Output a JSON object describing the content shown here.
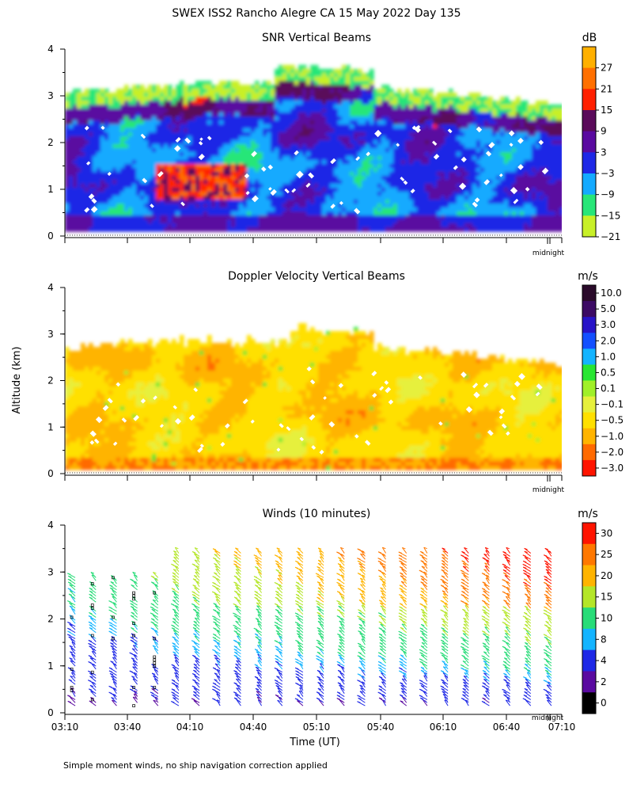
{
  "title": "SWEX ISS2 Rancho Alegre CA  15 May 2022 Day 135",
  "y_axis_label": "Altitude (km)",
  "x_axis_label": "Time (UT)",
  "footnote": "Simple moment winds, no ship navigation correction applied",
  "midnight_label": "midnight",
  "chart_data": [
    {
      "type": "heatmap",
      "title": "SNR Vertical Beams",
      "ylabel": "Altitude (km)",
      "ylim": [
        0,
        4
      ],
      "yticks": [
        "0",
        "1",
        "2",
        "3",
        "4"
      ],
      "colorbar": {
        "unit": "dB",
        "tick_labels": [
          "27",
          "21",
          "15",
          "9",
          "3",
          "−3",
          "−9",
          "−15",
          "−21"
        ],
        "colors": [
          "#ffb000",
          "#ff7000",
          "#ff2000",
          "#5a0a5a",
          "#5a0aa0",
          "#1e28e6",
          "#14aaff",
          "#28e678",
          "#c8f028"
        ]
      }
    },
    {
      "type": "heatmap",
      "title": "Doppler Velocity Vertical Beams",
      "ylabel": "Altitude (km)",
      "ylim": [
        0,
        4
      ],
      "yticks": [
        "0",
        "1",
        "2",
        "3",
        "4"
      ],
      "colorbar": {
        "unit": "m/s",
        "tick_labels": [
          "10.0",
          "5.0",
          "3.0",
          "2.0",
          "1.0",
          "0.5",
          "0.1",
          "−0.1",
          "−0.5",
          "−1.0",
          "−2.0",
          "−3.0"
        ],
        "colors": [
          "#2a0a2a",
          "#3c0a64",
          "#2814c8",
          "#1450ff",
          "#14b4ff",
          "#28e632",
          "#a0f028",
          "#e6f03c",
          "#ffe000",
          "#ffb400",
          "#ff6a00",
          "#ff1400"
        ]
      }
    },
    {
      "type": "scatter",
      "title": "Winds (10 minutes)",
      "xlabel": "Time (UT)",
      "ylabel": "Altitude (km)",
      "ylim": [
        0,
        4
      ],
      "yticks": [
        "0",
        "1",
        "2",
        "3",
        "4"
      ],
      "x_tick_labels": [
        "03:10",
        "03:40",
        "04:10",
        "04:40",
        "05:10",
        "05:40",
        "06:10",
        "06:40",
        "07:10"
      ],
      "profile_times": [
        "03:15",
        "03:25",
        "03:35",
        "03:45",
        "03:55",
        "04:05",
        "04:15",
        "04:25",
        "04:35",
        "04:45",
        "04:55",
        "05:05",
        "05:15",
        "05:25",
        "05:35",
        "05:45",
        "05:55",
        "06:05",
        "06:15",
        "06:25",
        "06:35",
        "06:45",
        "06:55",
        "07:05"
      ],
      "colorbar": {
        "unit": "m/s",
        "tick_labels": [
          "30",
          "25",
          "20",
          "15",
          "10",
          "8",
          "4",
          "2",
          "0"
        ],
        "colors": [
          "#ff1400",
          "#ff7800",
          "#ffb400",
          "#b4e628",
          "#28dc78",
          "#14b4ff",
          "#1e28e6",
          "#5a0aa0",
          "#000000"
        ]
      }
    }
  ]
}
